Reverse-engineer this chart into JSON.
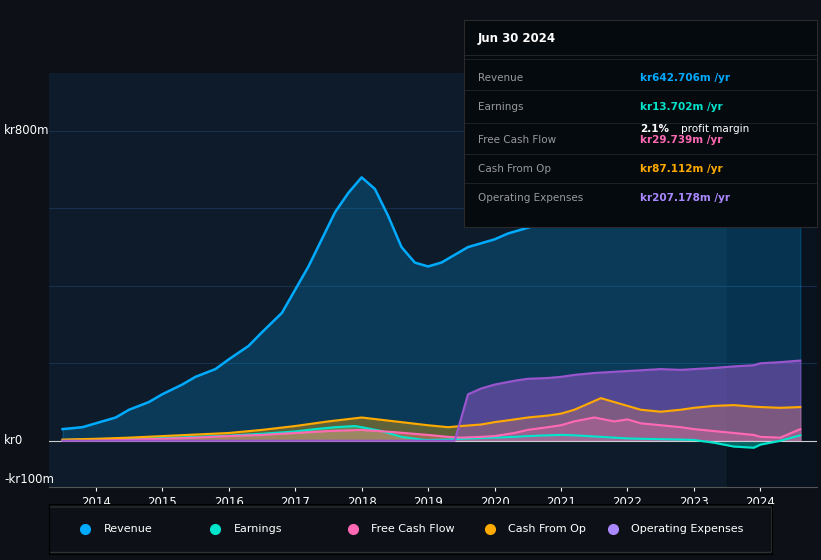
{
  "bg_color": "#0d1117",
  "chart_bg": "#0d1b2a",
  "grid_color": "#1e3a5f",
  "title_date": "Jun 30 2024",
  "info_box": {
    "Revenue": {
      "value": "kr642.706m",
      "color": "#00aaff"
    },
    "Earnings": {
      "value": "kr13.702m",
      "color": "#00e5cc"
    },
    "profit_margin": "2.1%",
    "Free Cash Flow": {
      "value": "kr29.739m",
      "color": "#ff69b4"
    },
    "Cash From Op": {
      "value": "kr87.112m",
      "color": "#ffaa00"
    },
    "Operating Expenses": {
      "value": "kr207.178m",
      "color": "#aa88ff"
    }
  },
  "y_label_top": "kr800m",
  "y_label_zero": "kr0",
  "y_label_bottom": "-kr100m",
  "ylim": [
    -120,
    950
  ],
  "xlim": [
    2013.3,
    2024.85
  ],
  "x_ticks": [
    2014,
    2015,
    2016,
    2017,
    2018,
    2019,
    2020,
    2021,
    2022,
    2023,
    2024
  ],
  "legend": [
    {
      "label": "Revenue",
      "color": "#00aaff"
    },
    {
      "label": "Earnings",
      "color": "#00e5cc"
    },
    {
      "label": "Free Cash Flow",
      "color": "#ff69b4"
    },
    {
      "label": "Cash From Op",
      "color": "#ffaa00"
    },
    {
      "label": "Operating Expenses",
      "color": "#aa88ff"
    }
  ],
  "revenue_x": [
    2013.5,
    2013.8,
    2014.0,
    2014.3,
    2014.5,
    2014.8,
    2015.0,
    2015.3,
    2015.5,
    2015.8,
    2016.0,
    2016.3,
    2016.5,
    2016.8,
    2017.0,
    2017.2,
    2017.4,
    2017.6,
    2017.8,
    2018.0,
    2018.2,
    2018.4,
    2018.6,
    2018.8,
    2019.0,
    2019.2,
    2019.4,
    2019.6,
    2019.8,
    2020.0,
    2020.2,
    2020.4,
    2020.6,
    2020.8,
    2021.0,
    2021.2,
    2021.4,
    2021.6,
    2021.8,
    2022.0,
    2022.2,
    2022.4,
    2022.6,
    2022.8,
    2023.0,
    2023.2,
    2023.4,
    2023.6,
    2023.8,
    2024.0,
    2024.2,
    2024.4,
    2024.6
  ],
  "revenue_y": [
    30,
    35,
    45,
    60,
    80,
    100,
    120,
    145,
    165,
    185,
    210,
    245,
    280,
    330,
    390,
    450,
    520,
    590,
    640,
    680,
    650,
    580,
    500,
    460,
    450,
    460,
    480,
    500,
    510,
    520,
    535,
    545,
    555,
    565,
    575,
    590,
    610,
    640,
    670,
    690,
    670,
    650,
    630,
    610,
    600,
    595,
    590,
    580,
    580,
    590,
    600,
    620,
    642
  ],
  "earnings_x": [
    2013.5,
    2014.0,
    2014.5,
    2015.0,
    2015.5,
    2016.0,
    2016.5,
    2017.0,
    2017.3,
    2017.6,
    2017.9,
    2018.0,
    2018.3,
    2018.6,
    2018.9,
    2019.0,
    2019.3,
    2019.5,
    2019.8,
    2020.0,
    2020.3,
    2020.5,
    2020.8,
    2021.0,
    2021.2,
    2021.4,
    2021.6,
    2021.8,
    2022.0,
    2022.2,
    2022.5,
    2022.8,
    2023.0,
    2023.3,
    2023.6,
    2023.9,
    2024.0,
    2024.3,
    2024.6
  ],
  "earnings_y": [
    2,
    3,
    5,
    7,
    10,
    13,
    18,
    24,
    30,
    35,
    38,
    35,
    25,
    10,
    3,
    2,
    3,
    5,
    7,
    8,
    10,
    12,
    14,
    15,
    14,
    12,
    10,
    8,
    6,
    5,
    4,
    3,
    2,
    -5,
    -15,
    -18,
    -10,
    0,
    14
  ],
  "fcf_x": [
    2013.5,
    2014.0,
    2014.5,
    2015.0,
    2015.5,
    2016.0,
    2016.5,
    2017.0,
    2017.5,
    2018.0,
    2018.5,
    2019.0,
    2019.3,
    2019.5,
    2019.8,
    2020.0,
    2020.3,
    2020.5,
    2020.8,
    2021.0,
    2021.2,
    2021.5,
    2021.8,
    2022.0,
    2022.2,
    2022.5,
    2022.8,
    2023.0,
    2023.3,
    2023.6,
    2023.9,
    2024.0,
    2024.3,
    2024.6
  ],
  "fcf_y": [
    1,
    2,
    3,
    5,
    8,
    12,
    15,
    20,
    25,
    28,
    22,
    15,
    10,
    8,
    10,
    12,
    20,
    28,
    35,
    40,
    50,
    60,
    50,
    55,
    45,
    40,
    35,
    30,
    25,
    20,
    15,
    10,
    8,
    30
  ],
  "cop_x": [
    2013.5,
    2014.0,
    2014.5,
    2015.0,
    2015.5,
    2016.0,
    2016.5,
    2017.0,
    2017.5,
    2018.0,
    2018.5,
    2019.0,
    2019.3,
    2019.5,
    2019.8,
    2020.0,
    2020.3,
    2020.5,
    2020.8,
    2021.0,
    2021.2,
    2021.4,
    2021.6,
    2021.8,
    2022.0,
    2022.2,
    2022.5,
    2022.8,
    2023.0,
    2023.3,
    2023.6,
    2023.9,
    2024.0,
    2024.3,
    2024.6
  ],
  "cop_y": [
    3,
    5,
    8,
    12,
    16,
    20,
    28,
    38,
    50,
    60,
    50,
    40,
    35,
    38,
    42,
    48,
    55,
    60,
    65,
    70,
    80,
    95,
    110,
    100,
    90,
    80,
    75,
    80,
    85,
    90,
    92,
    88,
    87,
    85,
    87
  ],
  "opex_x": [
    2013.5,
    2014.0,
    2014.5,
    2015.0,
    2015.5,
    2016.0,
    2016.5,
    2017.0,
    2017.5,
    2018.0,
    2018.5,
    2019.0,
    2019.4,
    2019.6,
    2019.8,
    2020.0,
    2020.3,
    2020.5,
    2020.8,
    2021.0,
    2021.2,
    2021.5,
    2021.8,
    2022.0,
    2022.2,
    2022.5,
    2022.8,
    2023.0,
    2023.3,
    2023.6,
    2023.9,
    2024.0,
    2024.3,
    2024.6
  ],
  "opex_y": [
    0,
    0,
    0,
    0,
    0,
    0,
    0,
    0,
    0,
    0,
    0,
    0,
    0,
    120,
    135,
    145,
    155,
    160,
    162,
    165,
    170,
    175,
    178,
    180,
    182,
    185,
    183,
    185,
    188,
    192,
    195,
    200,
    203,
    207
  ]
}
